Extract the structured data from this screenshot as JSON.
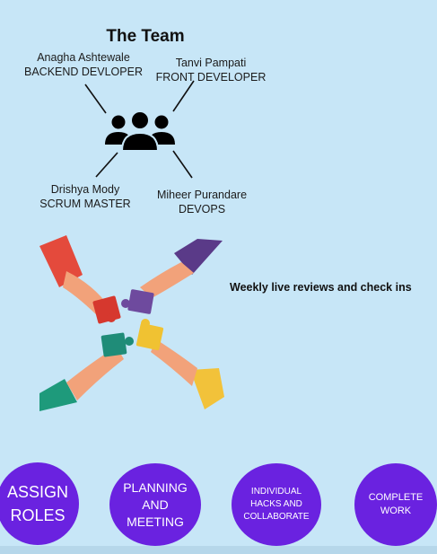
{
  "team": {
    "title": "The Team",
    "members": [
      {
        "name": "Anagha Ashtewale",
        "role": "BACKEND DEVLOPER"
      },
      {
        "name": "Tanvi Pampati",
        "role": "FRONT DEVELOPER"
      },
      {
        "name": "Drishya Mody",
        "role": "SCRUM MASTER"
      },
      {
        "name": "Miheer Purandare",
        "role": "DEVOPS"
      }
    ]
  },
  "reviews_text": "Weekly live reviews and check ins",
  "steps": [
    {
      "label": "ASSIGN\nROLES"
    },
    {
      "label": "PLANNING\nAND\nMEETING"
    },
    {
      "label": "INDIVIDUAL\nHACKS AND\nCOLLABORATE"
    },
    {
      "label": "COMPLETE\nWORK"
    }
  ],
  "colors": {
    "background": "#c7e6f7",
    "circle": "#6a22e0",
    "icon": "#000000"
  },
  "icons": {
    "team": "people-group-icon",
    "puzzle": "hands-puzzle-illustration"
  }
}
